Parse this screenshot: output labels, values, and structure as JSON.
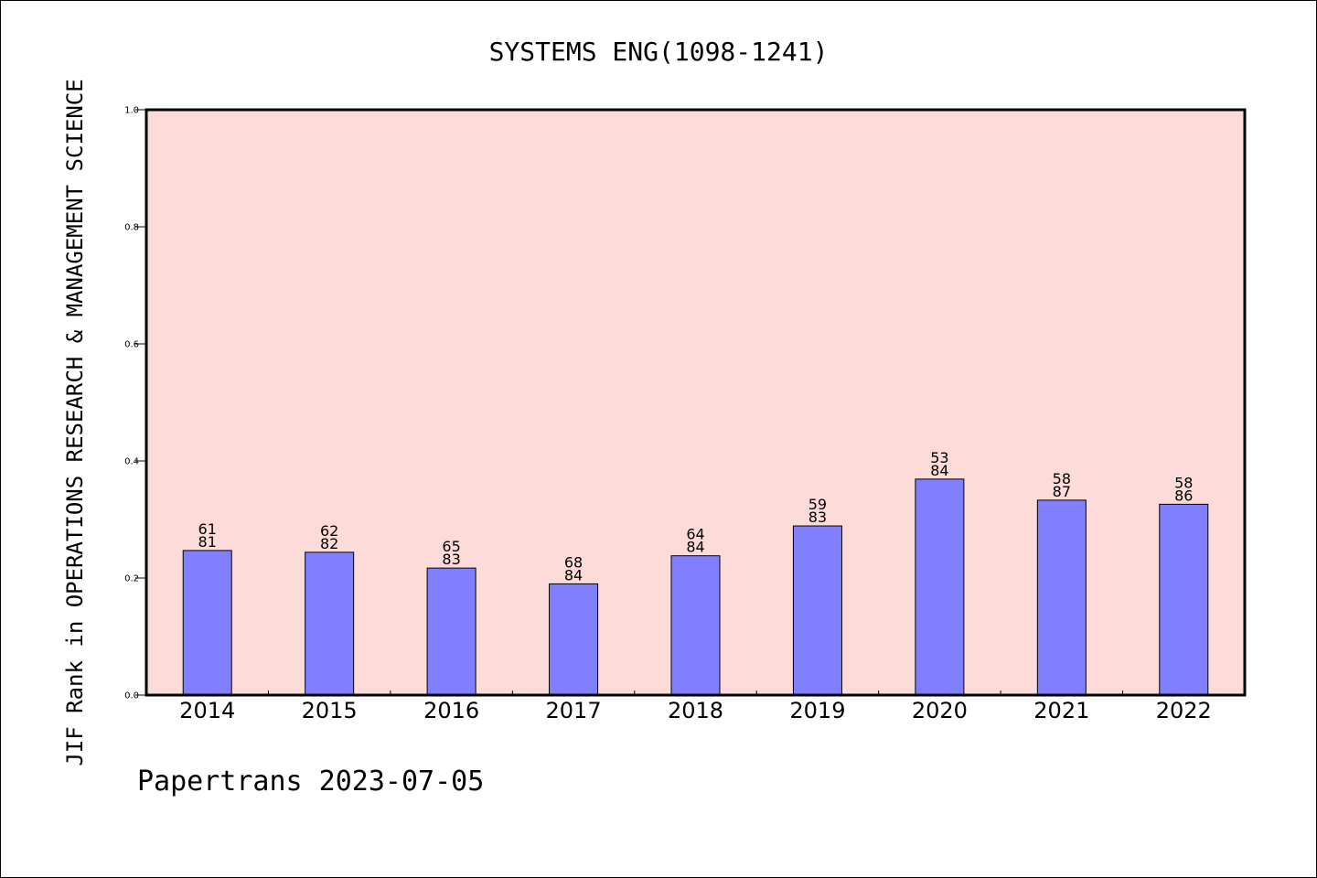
{
  "chart_data": {
    "type": "bar",
    "title": "SYSTEMS ENG(1098-1241)",
    "ylabel": "JIF Rank in OPERATIONS RESEARCH & MANAGEMENT SCIENCE",
    "xlabel": "",
    "categories": [
      "2014",
      "2015",
      "2016",
      "2017",
      "2018",
      "2019",
      "2020",
      "2021",
      "2022"
    ],
    "values": [
      0.247,
      0.244,
      0.217,
      0.19,
      0.238,
      0.289,
      0.369,
      0.333,
      0.326
    ],
    "rank": [
      61,
      62,
      65,
      68,
      64,
      59,
      53,
      58,
      58
    ],
    "total": [
      81,
      82,
      83,
      84,
      84,
      83,
      84,
      87,
      86
    ],
    "ylim": [
      0,
      1.0
    ],
    "yticks": [
      "0.0",
      "0.2",
      "0.4",
      "0.6",
      "0.8",
      "1.0"
    ],
    "grid": false,
    "colors": {
      "plot_background": "#fddbd8",
      "bar": "#8080ff",
      "bar_edge": "#000000"
    }
  },
  "footer": "Papertrans 2023-07-05"
}
